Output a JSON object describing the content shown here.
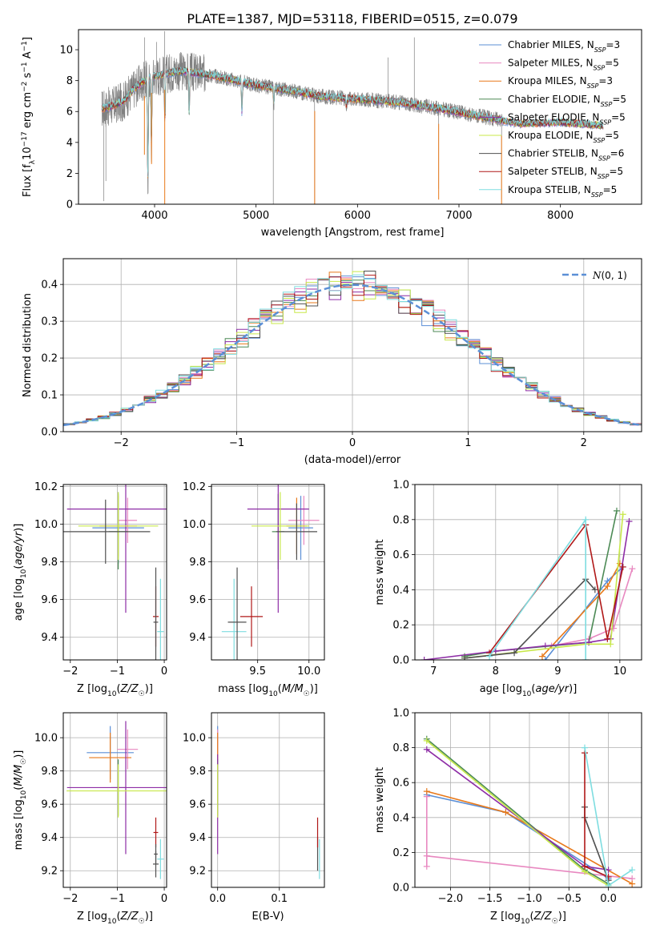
{
  "colors": {
    "Chabrier MILES": "#5b8fd6",
    "Salpeter MILES": "#e888c0",
    "Kroupa MILES": "#e8791a",
    "Chabrier ELODIE": "#4c8a55",
    "Salpeter ELODIE": "#8e2da6",
    "Kroupa ELODIE": "#c8e84a",
    "Chabrier STELIB": "#505050",
    "Salpeter STELIB": "#b01818",
    "Kroupa STELIB": "#7edde0",
    "data": "#808080",
    "normal": "#5b8fd6",
    "grid": "#b0b0b0"
  },
  "chart_data": [
    {
      "id": "spectrum",
      "type": "line",
      "title": "PLATE=1387, MJD=53118, FIBERID=0515, z=0.079",
      "xlabel": "wavelength [Angstrom, rest frame]",
      "ylabel": "Flux [f_λ10^-17 erg cm^-2 s^-1 A^-1]",
      "xlim": [
        3250,
        8800
      ],
      "ylim": [
        0,
        11.3
      ],
      "xticks": [
        "4000",
        "5000",
        "6000",
        "7000",
        "8000"
      ],
      "yticks": [
        "0",
        "2",
        "4",
        "6",
        "8",
        "10"
      ],
      "grid": false,
      "legend_position": "top-right",
      "legend": [
        {
          "model": "Chabrier MILES",
          "label": "Chabrier MILES, N",
          "sub": "SSP",
          "tail": "=3"
        },
        {
          "model": "Salpeter MILES",
          "label": "Salpeter MILES, N",
          "sub": "SSP",
          "tail": "=5"
        },
        {
          "model": "Kroupa MILES",
          "label": "Kroupa MILES, N",
          "sub": "SSP",
          "tail": "=3"
        },
        {
          "model": "Chabrier ELODIE",
          "label": "Chabrier ELODIE, N",
          "sub": "SSP",
          "tail": "=5"
        },
        {
          "model": "Salpeter ELODIE",
          "label": "Salpeter ELODIE, N",
          "sub": "SSP",
          "tail": "=5"
        },
        {
          "model": "Kroupa ELODIE",
          "label": "Kroupa ELODIE, N",
          "sub": "SSP",
          "tail": "=5"
        },
        {
          "model": "Chabrier STELIB",
          "label": "Chabrier STELIB, N",
          "sub": "SSP",
          "tail": "=6"
        },
        {
          "model": "Salpeter STELIB",
          "label": "Salpeter STELIB, N",
          "sub": "SSP",
          "tail": "=5"
        },
        {
          "model": "Kroupa STELIB",
          "label": "Kroupa STELIB, N",
          "sub": "SSP",
          "tail": "=5"
        }
      ],
      "continuum": [
        [
          3500,
          6.2
        ],
        [
          3600,
          6.4
        ],
        [
          3700,
          6.7
        ],
        [
          3800,
          7.5
        ],
        [
          3900,
          8.0
        ],
        [
          4000,
          8.3
        ],
        [
          4100,
          8.4
        ],
        [
          4200,
          8.6
        ],
        [
          4300,
          8.6
        ],
        [
          4400,
          8.5
        ],
        [
          4500,
          8.4
        ],
        [
          4600,
          8.3
        ],
        [
          4800,
          8.0
        ],
        [
          5000,
          7.7
        ],
        [
          5200,
          7.5
        ],
        [
          5400,
          7.3
        ],
        [
          5600,
          7.0
        ],
        [
          6000,
          6.8
        ],
        [
          6400,
          6.6
        ],
        [
          6800,
          6.2
        ],
        [
          7200,
          5.7
        ],
        [
          7600,
          5.2
        ],
        [
          8000,
          5.3
        ],
        [
          8400,
          5.1
        ]
      ],
      "data_range": [
        3480,
        7430
      ],
      "model_range": [
        3480,
        8420
      ],
      "absorption": [
        [
          3934,
          0,
          2.0
        ],
        [
          3969,
          3.1,
          2.0
        ],
        [
          4102,
          5.0,
          2.5
        ],
        [
          4340,
          5.6,
          2.5
        ],
        [
          4861,
          5.6,
          2.0
        ],
        [
          5175,
          6.4,
          3.0
        ],
        [
          5890,
          6.3,
          3.0
        ]
      ],
      "spikes": [
        [
          3500,
          0.2
        ],
        [
          3520,
          1.5
        ],
        [
          3900,
          10.8
        ],
        [
          4100,
          11.2
        ],
        [
          4020,
          10.5
        ],
        [
          5170,
          0
        ],
        [
          5577,
          0
        ],
        [
          6300,
          9.5
        ],
        [
          6560,
          10.8
        ],
        [
          6800,
          1.0
        ],
        [
          7420,
          0.3
        ]
      ]
    },
    {
      "id": "residual-histogram",
      "type": "step",
      "xlabel": "(data-model)/error",
      "ylabel": "Normed distribution",
      "xlim": [
        -2.5,
        2.5
      ],
      "ylim": [
        0,
        0.47
      ],
      "xticks": [
        "-2",
        "-1",
        "0",
        "1",
        "2"
      ],
      "yticks": [
        "0.0",
        "0.1",
        "0.2",
        "0.3",
        "0.4"
      ],
      "grid": true,
      "legend_position": "top-right",
      "normal_label": "N(0, 1)",
      "bin_width": 0.1
    },
    {
      "id": "age-vs-Z",
      "type": "errorbar",
      "xlabel": "Z [log10(Z/Z☉)]",
      "ylabel": "age [log10(age/yr)]",
      "xlim": [
        -2.15,
        0.05
      ],
      "ylim": [
        9.28,
        10.21
      ],
      "xticks": [
        "-2",
        "-1",
        "0"
      ],
      "yticks": [
        "9.4",
        "9.6",
        "9.8",
        "10.0",
        "10.2"
      ],
      "grid": true,
      "points": [
        {
          "model": "Chabrier MILES",
          "x": -0.98,
          "y": 9.98,
          "xerr": 0.55,
          "yerr": 0.19
        },
        {
          "model": "Salpeter MILES",
          "x": -0.78,
          "y": 10.02,
          "xerr": 0.2,
          "yerr": 0.12
        },
        {
          "model": "Kroupa MILES",
          "x": -0.98,
          "y": 9.99,
          "xerr": 0.4,
          "yerr": 0.16
        },
        {
          "model": "Chabrier ELODIE",
          "x": -0.98,
          "y": 9.96,
          "xerr": 0.2,
          "yerr": 0.2
        },
        {
          "model": "Salpeter ELODIE",
          "x": -0.82,
          "y": 10.08,
          "xerr": 1.25,
          "yerr": 0.55
        },
        {
          "model": "Kroupa ELODIE",
          "x": -0.98,
          "y": 9.99,
          "xerr": 0.85,
          "yerr": 0.18
        },
        {
          "model": "Chabrier STELIB",
          "x": -1.25,
          "y": 9.96,
          "xerr": 0.95,
          "yerr": 0.17
        },
        {
          "model": "Salpeter STELIB",
          "x": -0.18,
          "y": 9.51,
          "xerr": 0.06,
          "yerr": 0.16
        },
        {
          "model": "Kroupa STELIB",
          "x": -0.08,
          "y": 9.43,
          "xerr": 0.07,
          "yerr": 0.28
        },
        {
          "model": "Chabrier STELIB",
          "x": -0.18,
          "y": 9.48,
          "xerr": 0.05,
          "yerr": 0.29
        }
      ]
    },
    {
      "id": "age-vs-mass",
      "type": "errorbar",
      "xlabel": "mass [log10(M/M☉)]",
      "ylabel": "",
      "xlim": [
        9.05,
        10.15
      ],
      "ylim": [
        9.28,
        10.21
      ],
      "xticks": [
        "9.5",
        "10.0"
      ],
      "yticks": [
        "9.4",
        "9.6",
        "9.8",
        "10.0",
        "10.2"
      ],
      "grid": true,
      "points": [
        {
          "model": "Chabrier MILES",
          "x": 9.92,
          "y": 9.98,
          "xerr": 0.12,
          "yerr": 0.17
        },
        {
          "model": "Salpeter MILES",
          "x": 9.95,
          "y": 10.02,
          "xerr": 0.15,
          "yerr": 0.13
        },
        {
          "model": "Kroupa MILES",
          "x": 9.88,
          "y": 9.99,
          "xerr": 0.1,
          "yerr": 0.15
        },
        {
          "model": "Chabrier ELODIE",
          "x": 9.7,
          "y": 9.96,
          "xerr": 0.06,
          "yerr": 0.2
        },
        {
          "model": "Salpeter ELODIE",
          "x": 9.7,
          "y": 10.08,
          "xerr": 0.3,
          "yerr": 0.55
        },
        {
          "model": "Kroupa ELODIE",
          "x": 9.72,
          "y": 9.99,
          "xerr": 0.28,
          "yerr": 0.18
        },
        {
          "model": "Chabrier STELIB",
          "x": 9.88,
          "y": 9.96,
          "xerr": 0.2,
          "yerr": 0.15
        },
        {
          "model": "Salpeter STELIB",
          "x": 9.44,
          "y": 9.51,
          "xerr": 0.11,
          "yerr": 0.16
        },
        {
          "model": "Kroupa STELIB",
          "x": 9.27,
          "y": 9.43,
          "xerr": 0.12,
          "yerr": 0.28
        },
        {
          "model": "Chabrier STELIB",
          "x": 9.3,
          "y": 9.48,
          "xerr": 0.09,
          "yerr": 0.29
        }
      ]
    },
    {
      "id": "massweight-vs-age",
      "type": "line",
      "xlabel": "age [log10(age/yr)]",
      "ylabel": "mass weight",
      "xlim": [
        6.7,
        10.35
      ],
      "ylim": [
        0,
        1
      ],
      "xticks": [
        "7",
        "8",
        "9",
        "10"
      ],
      "yticks": [
        "0.0",
        "0.2",
        "0.4",
        "0.6",
        "0.8",
        "1.0"
      ],
      "grid": true,
      "series": [
        {
          "model": "Chabrier MILES",
          "x": [
            8.8,
            9.8,
            10.05
          ],
          "y": [
            0.0,
            0.45,
            0.53
          ]
        },
        {
          "model": "Salpeter MILES",
          "x": [
            8.9,
            9.5,
            9.9,
            10.2
          ],
          "y": [
            0.08,
            0.12,
            0.18,
            0.52
          ]
        },
        {
          "model": "Kroupa MILES",
          "x": [
            8.75,
            9.8,
            10.0
          ],
          "y": [
            0.02,
            0.42,
            0.55
          ]
        },
        {
          "model": "Chabrier ELODIE",
          "x": [
            7.5,
            8.0,
            9.5,
            9.95
          ],
          "y": [
            0.02,
            0.05,
            0.1,
            0.85
          ]
        },
        {
          "model": "Salpeter ELODIE",
          "x": [
            6.85,
            8.0,
            8.8,
            9.5,
            9.85,
            10.15
          ],
          "y": [
            0.0,
            0.05,
            0.08,
            0.1,
            0.12,
            0.79
          ]
        },
        {
          "model": "Kroupa ELODIE",
          "x": [
            7.5,
            9.45,
            9.85,
            10.05
          ],
          "y": [
            0.01,
            0.09,
            0.09,
            0.83
          ]
        },
        {
          "model": "Chabrier STELIB",
          "x": [
            7.5,
            8.3,
            9.45,
            9.6
          ],
          "y": [
            0.01,
            0.04,
            0.46,
            0.4
          ]
        },
        {
          "model": "Salpeter STELIB",
          "x": [
            7.9,
            9.45,
            9.8,
            10.05
          ],
          "y": [
            0.04,
            0.77,
            0.12,
            0.53
          ]
        },
        {
          "model": "Kroupa STELIB",
          "x": [
            7.9,
            9.45,
            9.45
          ],
          "y": [
            0.02,
            0.8,
            0.0
          ]
        }
      ]
    },
    {
      "id": "mass-vs-Z",
      "type": "errorbar",
      "xlabel": "Z [log10(Z/Z☉)]",
      "ylabel": "mass [log10(M/M☉)]",
      "xlim": [
        -2.15,
        0.05
      ],
      "ylim": [
        9.1,
        10.15
      ],
      "xticks": [
        "-2",
        "-1",
        "0"
      ],
      "yticks": [
        "9.2",
        "9.4",
        "9.6",
        "9.8",
        "10.0"
      ],
      "grid": true,
      "points": [
        {
          "model": "Chabrier MILES",
          "x": -1.15,
          "y": 9.91,
          "xerr": 0.5,
          "yerr": 0.16
        },
        {
          "model": "Salpeter MILES",
          "x": -0.78,
          "y": 9.93,
          "xerr": 0.22,
          "yerr": 0.12
        },
        {
          "model": "Kroupa MILES",
          "x": -1.15,
          "y": 9.88,
          "xerr": 0.45,
          "yerr": 0.15
        },
        {
          "model": "Chabrier ELODIE",
          "x": -0.98,
          "y": 9.7,
          "xerr": 0.15,
          "yerr": 0.17
        },
        {
          "model": "Salpeter ELODIE",
          "x": -0.82,
          "y": 9.7,
          "xerr": 1.25,
          "yerr": 0.4
        },
        {
          "model": "Kroupa ELODIE",
          "x": -0.98,
          "y": 9.68,
          "xerr": 1.1,
          "yerr": 0.16
        },
        {
          "model": "Chabrier STELIB",
          "x": -0.18,
          "y": 9.24,
          "xerr": 0.06,
          "yerr": 0.08
        },
        {
          "model": "Salpeter STELIB",
          "x": -0.18,
          "y": 9.43,
          "xerr": 0.05,
          "yerr": 0.09
        },
        {
          "model": "Kroupa STELIB",
          "x": -0.08,
          "y": 9.27,
          "xerr": 0.07,
          "yerr": 0.12
        },
        {
          "model": "Chabrier STELIB",
          "x": -0.18,
          "y": 9.3,
          "xerr": 0.04,
          "yerr": 0.06
        }
      ]
    },
    {
      "id": "mass-vs-EBV",
      "type": "errorbar",
      "xlabel": "E(B-V)",
      "ylabel": "",
      "xlim": [
        -0.01,
        0.173
      ],
      "ylim": [
        9.1,
        10.15
      ],
      "xticks": [
        "0.0",
        "0.1"
      ],
      "yticks": [
        "9.2",
        "9.4",
        "9.6",
        "9.8",
        "10.0"
      ],
      "grid": true,
      "points": [
        {
          "model": "Chabrier MILES",
          "x": 0.0,
          "y": 9.91,
          "xerr": 0.0,
          "yerr": 0.16
        },
        {
          "model": "Salpeter MILES",
          "x": 0.0,
          "y": 9.93,
          "xerr": 0.0,
          "yerr": 0.12
        },
        {
          "model": "Kroupa MILES",
          "x": 0.0,
          "y": 9.88,
          "xerr": 0.0,
          "yerr": 0.15
        },
        {
          "model": "Chabrier ELODIE",
          "x": 0.0,
          "y": 9.7,
          "xerr": 0.0,
          "yerr": 0.17
        },
        {
          "model": "Salpeter ELODIE",
          "x": 0.0,
          "y": 9.6,
          "xerr": 0.0,
          "yerr": 0.3
        },
        {
          "model": "Kroupa ELODIE",
          "x": 0.0,
          "y": 9.68,
          "xerr": 0.0,
          "yerr": 0.16
        },
        {
          "model": "Chabrier STELIB",
          "x": 0.162,
          "y": 9.3,
          "xerr": 0.0,
          "yerr": 0.1
        },
        {
          "model": "Salpeter STELIB",
          "x": 0.162,
          "y": 9.43,
          "xerr": 0.0,
          "yerr": 0.09
        },
        {
          "model": "Kroupa STELIB",
          "x": 0.165,
          "y": 9.27,
          "xerr": 0.0,
          "yerr": 0.12
        }
      ]
    },
    {
      "id": "massweight-vs-Z",
      "type": "line",
      "xlabel": "Z [log10(Z/Z☉)]",
      "ylabel": "mass weight",
      "xlim": [
        -2.45,
        0.42
      ],
      "ylim": [
        0,
        1
      ],
      "xticks": [
        "-2.0",
        "-1.5",
        "-1.0",
        "-0.5",
        "0.0"
      ],
      "yticks": [
        "0.0",
        "0.2",
        "0.4",
        "0.6",
        "0.8",
        "1.0"
      ],
      "grid": true,
      "series": [
        {
          "model": "Chabrier MILES",
          "x": [
            -2.3,
            -1.3,
            0.0
          ],
          "y": [
            0.53,
            0.43,
            0.05
          ]
        },
        {
          "model": "Salpeter MILES",
          "x": [
            -2.3,
            -2.3,
            -2.3,
            0.3
          ],
          "y": [
            0.52,
            0.12,
            0.18,
            0.05
          ]
        },
        {
          "model": "Kroupa MILES",
          "x": [
            -2.3,
            -1.3,
            0.3
          ],
          "y": [
            0.55,
            0.43,
            0.02
          ]
        },
        {
          "model": "Chabrier ELODIE",
          "x": [
            -2.3,
            -0.3,
            0.0
          ],
          "y": [
            0.85,
            0.1,
            0.02
          ]
        },
        {
          "model": "Salpeter ELODIE",
          "x": [
            -2.3,
            -0.3,
            0.0
          ],
          "y": [
            0.79,
            0.12,
            0.1
          ]
        },
        {
          "model": "Kroupa ELODIE",
          "x": [
            -2.3,
            -0.3,
            0.0
          ],
          "y": [
            0.84,
            0.09,
            0.01
          ]
        },
        {
          "model": "Chabrier STELIB",
          "x": [
            -0.3,
            -0.3,
            0.0
          ],
          "y": [
            0.46,
            0.4,
            0.04
          ]
        },
        {
          "model": "Salpeter STELIB",
          "x": [
            -0.3,
            -0.3,
            0.0
          ],
          "y": [
            0.77,
            0.12,
            0.06
          ]
        },
        {
          "model": "Kroupa STELIB",
          "x": [
            -0.3,
            0.0,
            0.3
          ],
          "y": [
            0.8,
            0.01,
            0.1
          ]
        }
      ]
    }
  ]
}
